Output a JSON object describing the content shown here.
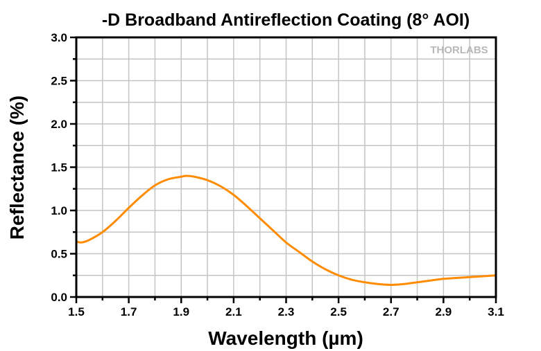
{
  "chart_data": {
    "type": "line",
    "title": "-D Broadband Antireflection Coating (8° AOI)",
    "xlabel": "Wavelength (µm)",
    "ylabel": "Reflectance (%)",
    "xlim": [
      1.5,
      3.1
    ],
    "ylim": [
      0,
      3.0
    ],
    "xticks": [
      "1.5",
      "1.7",
      "1.9",
      "2.1",
      "2.3",
      "2.5",
      "2.7",
      "2.9",
      "3.1"
    ],
    "yticks": [
      "0.0",
      "0.5",
      "1.0",
      "1.5",
      "2.0",
      "2.5",
      "3.0"
    ],
    "grid": true,
    "watermark": "THORLABS",
    "series": [
      {
        "color": "#FF8C00",
        "x": [
          1.5,
          1.52,
          1.55,
          1.6,
          1.65,
          1.7,
          1.75,
          1.8,
          1.85,
          1.9,
          1.92,
          1.95,
          2.0,
          2.05,
          2.1,
          2.15,
          2.2,
          2.25,
          2.3,
          2.35,
          2.4,
          2.45,
          2.5,
          2.55,
          2.6,
          2.65,
          2.7,
          2.75,
          2.8,
          2.85,
          2.9,
          3.0,
          3.1
        ],
        "y": [
          0.64,
          0.63,
          0.66,
          0.75,
          0.88,
          1.03,
          1.17,
          1.29,
          1.36,
          1.39,
          1.4,
          1.39,
          1.35,
          1.28,
          1.18,
          1.05,
          0.91,
          0.77,
          0.63,
          0.52,
          0.41,
          0.32,
          0.25,
          0.2,
          0.17,
          0.15,
          0.14,
          0.15,
          0.17,
          0.19,
          0.21,
          0.23,
          0.25
        ]
      }
    ]
  }
}
